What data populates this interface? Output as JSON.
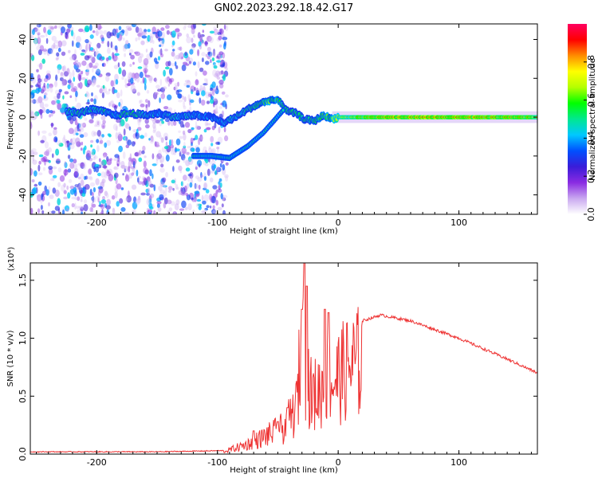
{
  "figure": {
    "title": "GN02.2023.292.18.42.G17"
  },
  "chart_data": [
    {
      "type": "heatmap",
      "xlabel": "Height of straight line (km)",
      "ylabel": "Frequency (Hz)",
      "xlim": [
        -255,
        165
      ],
      "ylim": [
        -50,
        48
      ],
      "xticks": [
        -200,
        -100,
        0,
        100
      ],
      "yticks": [
        -40,
        -20,
        0,
        20,
        40
      ],
      "colorbar": {
        "label": "Normalized spectral amplitude",
        "range": [
          0,
          1
        ],
        "ticks": [
          "0.0",
          "0.2",
          "0.4",
          "0.6",
          "0.8"
        ],
        "colors": [
          "#ffffff",
          "#c9a8f0",
          "#8a2be2",
          "#3a1cd8",
          "#0050ff",
          "#00c8ff",
          "#00e890",
          "#00ff00",
          "#b4ff00",
          "#ffff00",
          "#ff8c00",
          "#ff0000",
          "#ff0060"
        ]
      },
      "noise_region_x": [
        -255,
        -100
      ],
      "ridge": [
        {
          "x": -225,
          "y": 3,
          "a": 0.45
        },
        {
          "x": -215,
          "y": 2,
          "a": 0.5
        },
        {
          "x": -205,
          "y": 4,
          "a": 0.45
        },
        {
          "x": -195,
          "y": 3,
          "a": 0.5
        },
        {
          "x": -185,
          "y": 1,
          "a": 0.4
        },
        {
          "x": -172,
          "y": 2,
          "a": 0.6
        },
        {
          "x": -160,
          "y": 1,
          "a": 0.45
        },
        {
          "x": -148,
          "y": 2,
          "a": 0.4
        },
        {
          "x": -135,
          "y": 0,
          "a": 0.45
        },
        {
          "x": -120,
          "y": 1,
          "a": 0.4
        },
        {
          "x": -105,
          "y": 0,
          "a": 0.35
        },
        {
          "x": -95,
          "y": -3,
          "a": 0.4
        },
        {
          "x": -85,
          "y": 0,
          "a": 0.45
        },
        {
          "x": -75,
          "y": 4,
          "a": 0.5
        },
        {
          "x": -65,
          "y": 7,
          "a": 0.55
        },
        {
          "x": -55,
          "y": 9,
          "a": 0.6
        },
        {
          "x": -48,
          "y": 8,
          "a": 0.55
        },
        {
          "x": -42,
          "y": 3,
          "a": 0.5
        },
        {
          "x": -35,
          "y": 2,
          "a": 0.55
        },
        {
          "x": -28,
          "y": -1,
          "a": 0.5
        },
        {
          "x": -20,
          "y": -2,
          "a": 0.55
        },
        {
          "x": -12,
          "y": 1,
          "a": 0.6
        },
        {
          "x": -5,
          "y": -1,
          "a": 0.6
        },
        {
          "x": 0,
          "y": 0,
          "a": 0.7
        },
        {
          "x": 40,
          "y": 0,
          "a": 0.85
        },
        {
          "x": 100,
          "y": 0,
          "a": 0.85
        },
        {
          "x": 165,
          "y": 0,
          "a": 0.8
        }
      ],
      "secondary_branch": [
        {
          "x": -120,
          "y": -20
        },
        {
          "x": -105,
          "y": -20
        },
        {
          "x": -90,
          "y": -21
        },
        {
          "x": -75,
          "y": -15
        },
        {
          "x": -62,
          "y": -8
        },
        {
          "x": -52,
          "y": -1
        },
        {
          "x": -45,
          "y": 4
        }
      ]
    },
    {
      "type": "line",
      "xlabel": "Height of straight line (km)",
      "ylabel": "SNR (10 * v/v)",
      "yscale_label": "(x10⁴)",
      "xlim": [
        -255,
        165
      ],
      "ylim": [
        0,
        1.65
      ],
      "xticks": [
        -200,
        -100,
        0,
        100
      ],
      "yticks": [
        0.0,
        0.5,
        1.0,
        1.5
      ],
      "ytick_labels": [
        "0.0",
        "0.5",
        "1.0",
        "1.5"
      ],
      "color": "#ee3333",
      "envelope": [
        {
          "x": -255,
          "y": 0.02
        },
        {
          "x": -200,
          "y": 0.02
        },
        {
          "x": -150,
          "y": 0.02
        },
        {
          "x": -95,
          "y": 0.03
        },
        {
          "x": -75,
          "y": 0.12
        },
        {
          "x": -60,
          "y": 0.22
        },
        {
          "x": -45,
          "y": 0.32
        },
        {
          "x": -35,
          "y": 0.55
        },
        {
          "x": -30,
          "y": 1.35
        },
        {
          "x": -22,
          "y": 0.7
        },
        {
          "x": -10,
          "y": 0.85
        },
        {
          "x": 0,
          "y": 0.95
        },
        {
          "x": 10,
          "y": 1.08
        },
        {
          "x": 20,
          "y": 1.15
        },
        {
          "x": 35,
          "y": 1.2
        },
        {
          "x": 60,
          "y": 1.15
        },
        {
          "x": 100,
          "y": 1.0
        },
        {
          "x": 140,
          "y": 0.82
        },
        {
          "x": 165,
          "y": 0.7
        }
      ],
      "spikes": [
        {
          "x": -28,
          "y": 1.65
        },
        {
          "x": -30,
          "y": 1.25
        },
        {
          "x": -26,
          "y": 1.45
        },
        {
          "x": -11,
          "y": 1.25
        },
        {
          "x": -8,
          "y": 1.22
        },
        {
          "x": -42,
          "y": 0.4
        },
        {
          "x": -50,
          "y": 0.28
        },
        {
          "x": -70,
          "y": 0.2
        }
      ]
    }
  ]
}
